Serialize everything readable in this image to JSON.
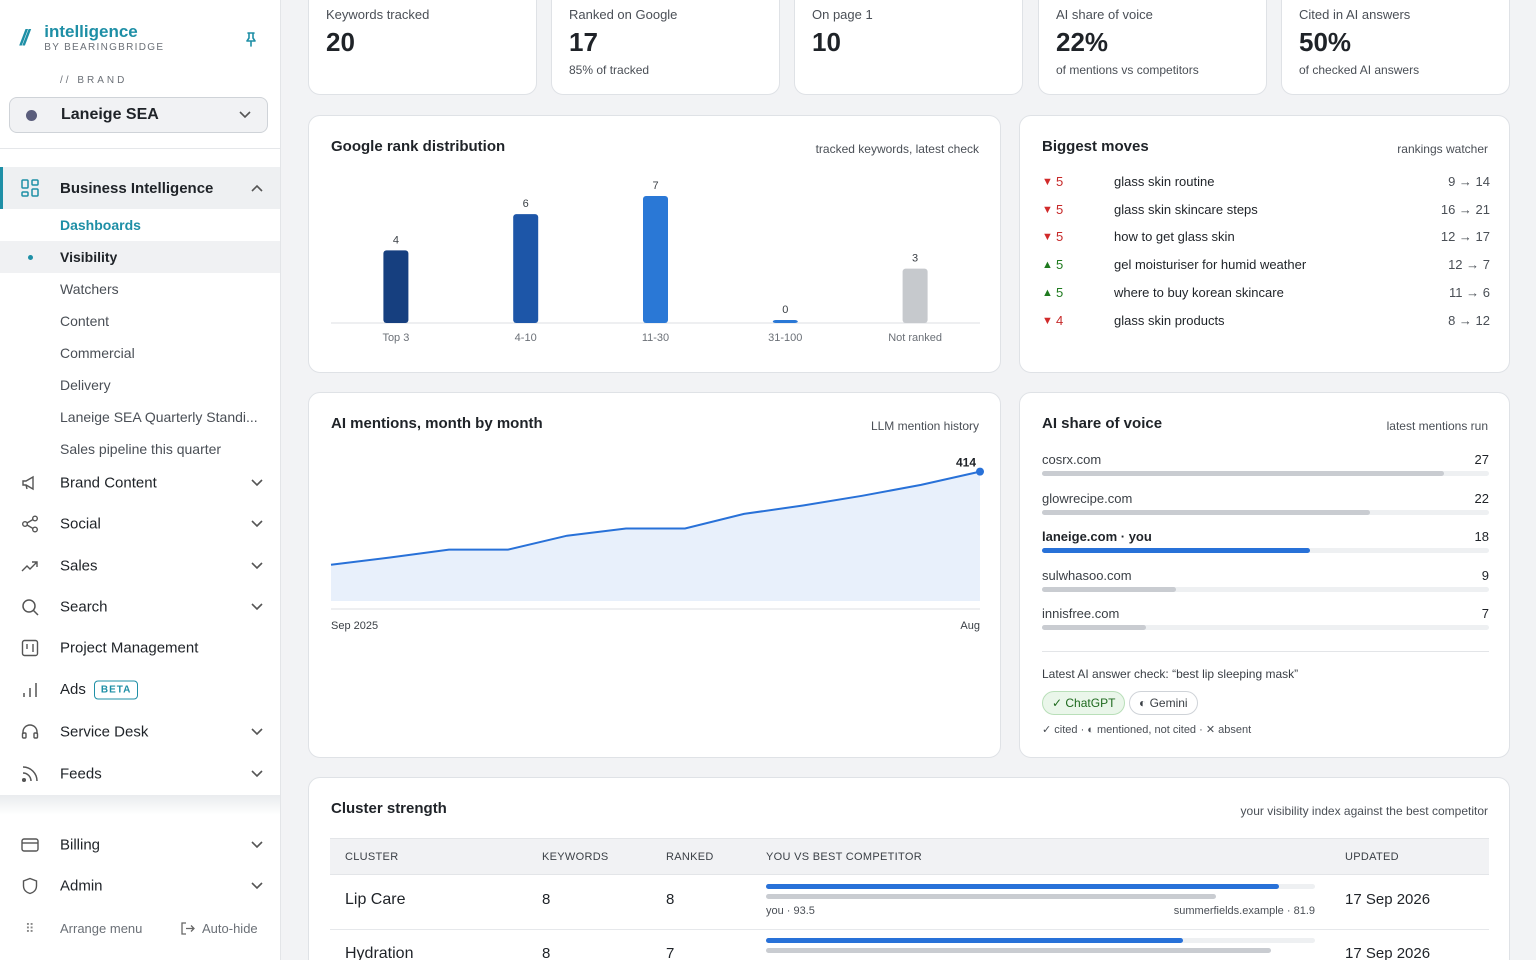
{
  "app": {
    "logo_mark": "//",
    "name": "intelligence",
    "byline": "BY BEARINGBRIDGE",
    "brand_label": "// BRAND",
    "brand_selected": "Laneige SEA"
  },
  "nav": {
    "main": "Business Intelligence",
    "sub": [
      "Dashboards",
      "Visibility",
      "Watchers",
      "Content",
      "Commercial",
      "Delivery",
      "Laneige SEA Quarterly Standi...",
      "Sales pipeline this quarter"
    ],
    "items": [
      "Brand Content",
      "Social",
      "Sales",
      "Search",
      "Project Management",
      "Ads",
      "Service Desk",
      "Feeds"
    ],
    "beta_badge": "BETA",
    "bottom": [
      "Billing",
      "Admin"
    ],
    "arrange": "Arrange menu",
    "autohide": "Auto-hide"
  },
  "kpis": [
    {
      "label": "Keywords tracked",
      "value": "20",
      "sub": ""
    },
    {
      "label": "Ranked on Google",
      "value": "17",
      "sub": "85% of tracked"
    },
    {
      "label": "On page 1",
      "value": "10",
      "sub": ""
    },
    {
      "label": "AI share of voice",
      "value": "22%",
      "sub": "of mentions vs competitors"
    },
    {
      "label": "Cited in AI answers",
      "value": "50%",
      "sub": "of checked AI answers"
    }
  ],
  "rank_dist": {
    "title": "Google rank distribution",
    "meta": "tracked keywords, latest check"
  },
  "moves": {
    "title": "Biggest moves",
    "meta": "rankings watcher",
    "rows": [
      {
        "dir": "down",
        "arrow": "▼",
        "delta": "5",
        "keyword": "glass skin routine",
        "range": "9 → 14"
      },
      {
        "dir": "down",
        "arrow": "▼",
        "delta": "5",
        "keyword": "glass skin skincare steps",
        "range": "16 → 21"
      },
      {
        "dir": "down",
        "arrow": "▼",
        "delta": "5",
        "keyword": "how to get glass skin",
        "range": "12 → 17"
      },
      {
        "dir": "up",
        "arrow": "▲",
        "delta": "5",
        "keyword": "gel moisturiser for humid weather",
        "range": "12 → 7"
      },
      {
        "dir": "up",
        "arrow": "▲",
        "delta": "5",
        "keyword": "where to buy korean skincare",
        "range": "11 → 6"
      },
      {
        "dir": "down",
        "arrow": "▼",
        "delta": "4",
        "keyword": "glass skin products",
        "range": "8 → 12"
      }
    ]
  },
  "mentions": {
    "title": "AI mentions, month by month",
    "meta": "LLM mention history"
  },
  "sov": {
    "title": "AI share of voice",
    "meta": "latest mentions run",
    "max": 30,
    "rows": [
      {
        "domain": "cosrx.com",
        "value": 27,
        "you": false
      },
      {
        "domain": "glowrecipe.com",
        "value": 22,
        "you": false
      },
      {
        "domain": "laneige.com · you",
        "value": 18,
        "you": true
      },
      {
        "domain": "sulwhasoo.com",
        "value": 9,
        "you": false
      },
      {
        "domain": "innisfree.com",
        "value": 7,
        "you": false
      }
    ],
    "check": "Latest AI answer check: “best lip sleeping mask”",
    "pill_cited": "✓ ChatGPT",
    "pill_mentioned": "◐ Gemini",
    "legend": "✓ cited · ◐ mentioned, not cited · ✕ absent"
  },
  "cluster": {
    "title": "Cluster strength",
    "meta": "your visibility index against the best competitor",
    "headers": [
      "CLUSTER",
      "KEYWORDS",
      "RANKED",
      "YOU VS BEST COMPETITOR",
      "UPDATED"
    ],
    "rows": [
      {
        "name": "Lip Care",
        "keywords": "8",
        "ranked": "8",
        "you": 93.5,
        "you_label": "you · 93.5",
        "comp": 81.9,
        "comp_label": "summerfields.example · 81.9",
        "updated": "17 Sep 2026"
      },
      {
        "name": "Hydration",
        "keywords": "8",
        "ranked": "7",
        "you": 76,
        "you_label": "",
        "comp": 92,
        "comp_label": "",
        "updated": "17 Sep 2026"
      }
    ]
  },
  "colors": {
    "accent": "#1e8fa6",
    "blue": "#2871d8",
    "down": "#c62828",
    "up": "#1f7a1f"
  },
  "chart_data": [
    {
      "type": "bar",
      "title": "Google rank distribution",
      "subtitle": "tracked keywords, latest check",
      "categories": [
        "Top 3",
        "4-10",
        "11-30",
        "31-100",
        "Not ranked"
      ],
      "values": [
        4,
        6,
        7,
        0,
        3
      ],
      "colors": [
        "#163f7f",
        "#1d56a8",
        "#2a78d6",
        "#2a78d6",
        "#c6c9cd"
      ],
      "ylim": [
        0,
        7
      ],
      "grid": false,
      "xlabel": "",
      "ylabel": ""
    },
    {
      "type": "area",
      "title": "AI mentions, month by month",
      "subtitle": "LLM mention history",
      "x": [
        "Sep 2025",
        "Oct",
        "Nov",
        "Dec",
        "Jan",
        "Feb",
        "Mar",
        "Apr",
        "May",
        "Jun",
        "Jul",
        "Aug"
      ],
      "x_tick_labels": [
        "Sep 2025",
        "Aug"
      ],
      "values": [
        260,
        272,
        285,
        285,
        308,
        320,
        320,
        344,
        358,
        374,
        392,
        414
      ],
      "last_label": "414",
      "ylim": [
        200,
        420
      ],
      "grid": false,
      "color": "#2871d8"
    }
  ]
}
